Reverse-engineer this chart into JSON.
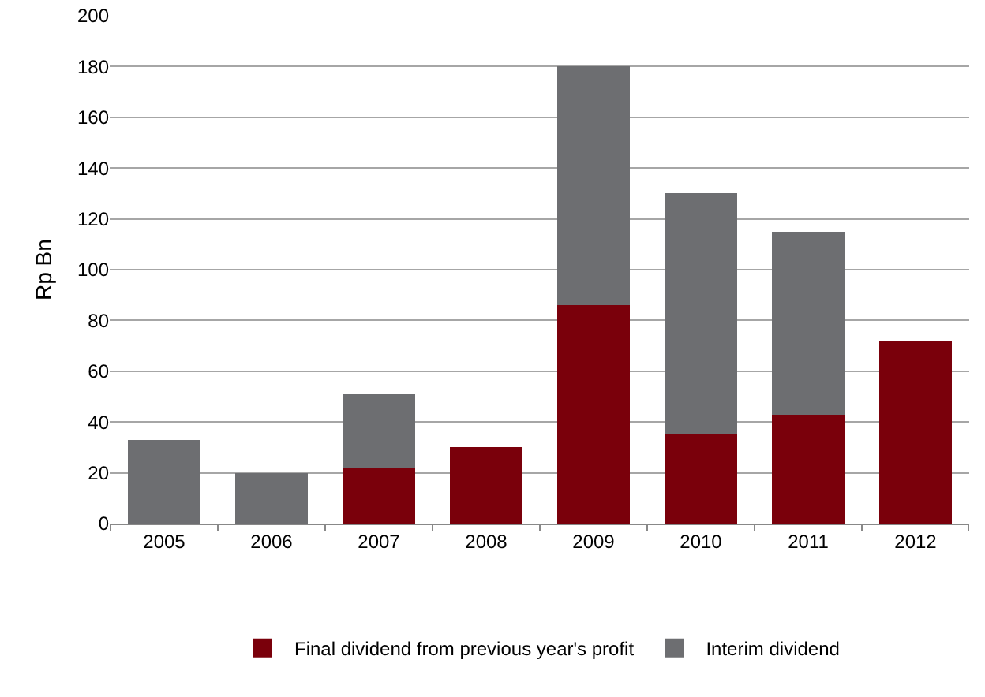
{
  "chart_data": {
    "type": "bar",
    "stacked": true,
    "ylabel": "Rp Bn",
    "categories": [
      "2005",
      "2006",
      "2007",
      "2008",
      "2009",
      "2010",
      "2011",
      "2012"
    ],
    "series": [
      {
        "name": "Final dividend from previous year's profit",
        "color": "#7a000b",
        "values": [
          null,
          null,
          22,
          30,
          86,
          35,
          43,
          72
        ]
      },
      {
        "name": "Interim dividend",
        "color": "#6d6e71",
        "values": [
          33,
          20,
          29,
          null,
          94,
          95,
          72,
          null
        ]
      }
    ],
    "ylim": [
      0,
      200
    ],
    "yticks": [
      0,
      20,
      40,
      60,
      80,
      100,
      120,
      140,
      160,
      180,
      200
    ],
    "grid": "y",
    "legend": "bottom"
  }
}
